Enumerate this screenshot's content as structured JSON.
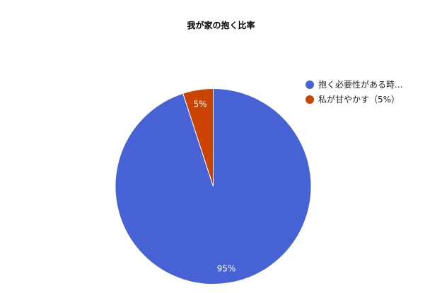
{
  "chart_data": {
    "type": "pie",
    "title": "我が家の抱く比率",
    "slices": [
      {
        "name": "抱く必要性がある時...",
        "value": 95,
        "label": "95%",
        "color": "#4662d5"
      },
      {
        "name": "私が甘やかす（5%）",
        "value": 5,
        "label": "5%",
        "color": "#cb4302"
      }
    ],
    "legend_position": "right"
  }
}
